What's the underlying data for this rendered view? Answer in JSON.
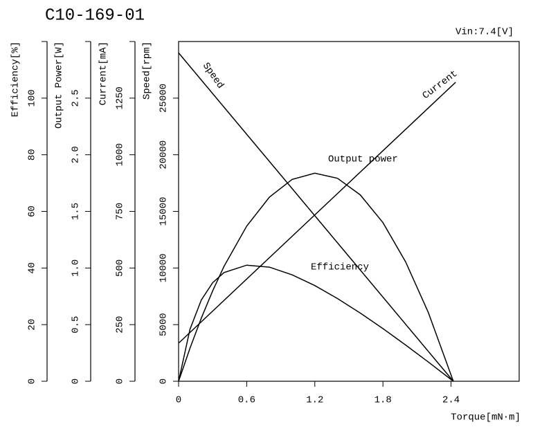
{
  "chart_data": {
    "type": "line",
    "title": "C10-169-01",
    "annotation": "Vin:7.4[V]",
    "xlabel": "Torque[mN·m]",
    "xlim": [
      0,
      3.0
    ],
    "xticks": [
      0,
      0.6,
      1.2,
      1.8,
      2.4
    ],
    "color": "#000000",
    "y_axes": [
      {
        "label": "Efficiency[%]",
        "ylim": [
          0,
          120
        ],
        "yticks": [
          0,
          20,
          40,
          60,
          80,
          100
        ],
        "series": [
          {
            "name": "Efficiency",
            "x": [
              0,
              0.1,
              0.2,
              0.3,
              0.4,
              0.6,
              0.8,
              1.0,
              1.2,
              1.4,
              1.6,
              1.8,
              2.0,
              2.2,
              2.42
            ],
            "values": [
              0,
              18.3,
              28.7,
              34.8,
              38.4,
              41.0,
              40.3,
              37.6,
              33.8,
              29.2,
              24.1,
              18.6,
              12.8,
              6.8,
              0
            ]
          }
        ]
      },
      {
        "label": "Output Power[W]",
        "ylim": [
          0,
          3.0
        ],
        "yticks": [
          0,
          0.5,
          {
            "value": 1,
            "label": "1.0"
          },
          1.5,
          {
            "value": 2,
            "label": "2.0"
          },
          2.5
        ],
        "series": [
          {
            "name": "Output power",
            "x": [
              0,
              0.1,
              0.2,
              0.3,
              0.4,
              0.6,
              0.8,
              1.0,
              1.2,
              1.4,
              1.6,
              1.8,
              2.0,
              2.2,
              2.42
            ],
            "values": [
              0,
              0.291,
              0.557,
              0.798,
              1.014,
              1.37,
              1.626,
              1.782,
              1.837,
              1.792,
              1.646,
              1.401,
              1.054,
              0.607,
              0
            ]
          }
        ]
      },
      {
        "label": "Current[mA]",
        "ylim": [
          0,
          1500
        ],
        "yticks": [
          0,
          250,
          500,
          750,
          1000,
          1250
        ],
        "series": [
          {
            "name": "Current",
            "x": [
              0,
              2.44
            ],
            "values": [
              168,
              1320
            ]
          }
        ]
      },
      {
        "label": "Speed[rpm]",
        "ylim": [
          0,
          30000
        ],
        "yticks": [
          0,
          5000,
          10000,
          15000,
          20000,
          25000
        ],
        "series": [
          {
            "name": "Speed",
            "x": [
              0,
              2.42
            ],
            "values": [
              29000,
              0
            ]
          }
        ]
      }
    ]
  }
}
